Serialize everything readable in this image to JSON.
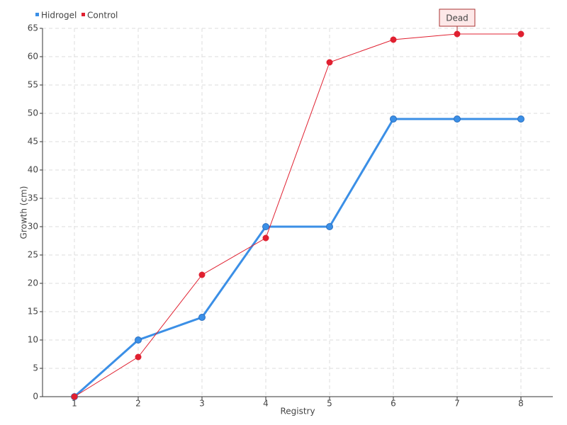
{
  "chart_data": {
    "type": "line",
    "x_label": "Registry",
    "y_label": "Growth (cm)",
    "categories": [
      "1",
      "2",
      "3",
      "4",
      "5",
      "6",
      "7",
      "8"
    ],
    "series": [
      {
        "name": "Hidrogel",
        "color": "#3b8fe6",
        "values": [
          0,
          10,
          14,
          30,
          30,
          49,
          49,
          49
        ]
      },
      {
        "name": "Control",
        "color": "#e02030",
        "values": [
          0,
          7,
          21.5,
          28,
          59,
          63,
          64,
          64
        ]
      }
    ],
    "ylim": [
      0,
      65
    ],
    "yticks": [
      0,
      5,
      10,
      15,
      20,
      25,
      30,
      35,
      40,
      45,
      50,
      55,
      60,
      65
    ],
    "grid": true,
    "legend": "top-left",
    "annotations": [
      {
        "label": "Dead",
        "x": "7",
        "y": 64
      }
    ]
  }
}
